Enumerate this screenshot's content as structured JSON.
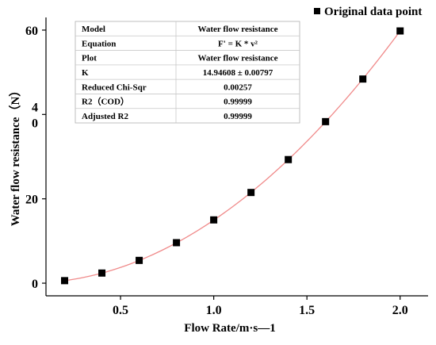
{
  "chart_data": {
    "type": "scatter",
    "xlabel": "Flow Rate/m·s—1",
    "ylabel": "Water flow resistance（N）",
    "xlim": [
      0.1,
      2.15
    ],
    "ylim": [
      -3,
      63
    ],
    "x_ticks": [
      {
        "value": 0.5,
        "label": "0.5"
      },
      {
        "value": 1.0,
        "label": "1.0"
      },
      {
        "value": 1.5,
        "label": "1.5"
      },
      {
        "value": 2.0,
        "label": "2.0"
      }
    ],
    "y_ticks": [
      {
        "value": 0,
        "label": "0"
      },
      {
        "value": 20,
        "label": "20"
      },
      {
        "value": 40,
        "label": "4\n0"
      },
      {
        "value": 60,
        "label": "60"
      }
    ],
    "series": [
      {
        "name": "Original data point",
        "marker": "square",
        "color": "#000000",
        "x": [
          0.2,
          0.4,
          0.6,
          0.8,
          1.0,
          1.2,
          1.4,
          1.6,
          1.8,
          2.0
        ],
        "y": [
          0.6,
          2.4,
          5.4,
          9.6,
          15.0,
          21.5,
          29.3,
          38.3,
          48.4,
          59.8
        ]
      }
    ],
    "fit": {
      "equation_coefficient": 14.94608,
      "color": "#f08a8a"
    },
    "legend": {
      "position": "top-right",
      "label": "Original data point"
    },
    "grid": false
  },
  "fit_table": {
    "rows": [
      {
        "label": "Model",
        "value": "Water flow resistance"
      },
      {
        "label": "Equation",
        "value": "F' = K * v²"
      },
      {
        "label": "Plot",
        "value": "Water flow resistance"
      },
      {
        "label": "K",
        "value": "14.94608 ± 0.00797"
      },
      {
        "label": "Reduced Chi-Sqr",
        "value": "0.00257"
      },
      {
        "label": "R2（COD）",
        "value": "0.99999"
      },
      {
        "label": "Adjusted R2",
        "value": "0.99999"
      }
    ]
  }
}
